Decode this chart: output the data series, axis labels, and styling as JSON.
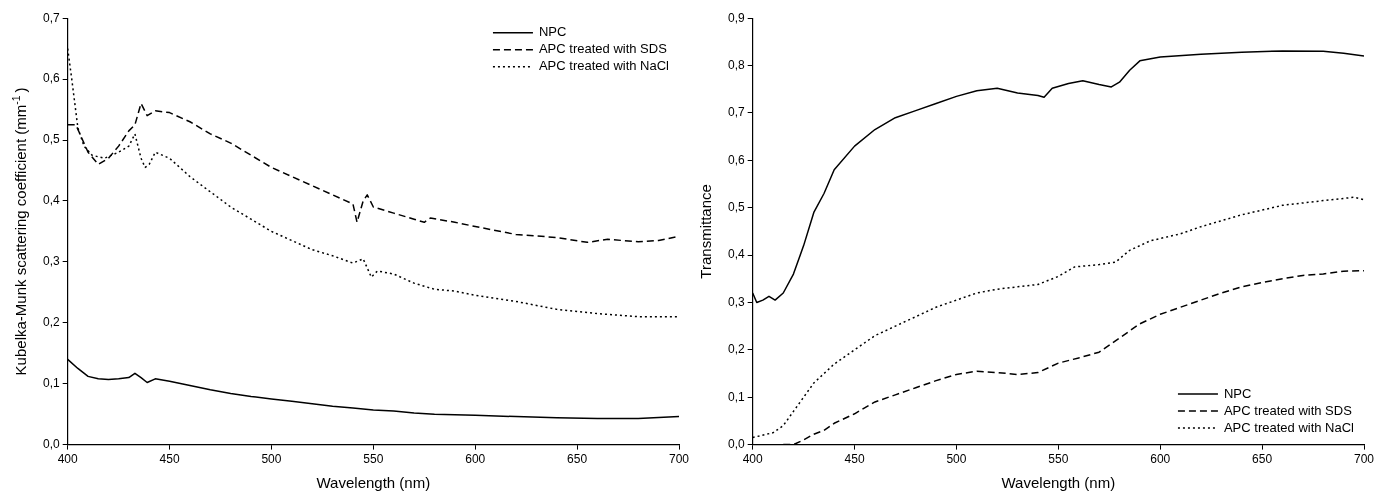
{
  "chart_data": [
    {
      "type": "line",
      "xlabel": "Wavelength (nm)",
      "ylabel": "Kubelka-Munk scattering coefficient (mm$^{-1}$)",
      "xlim": [
        400,
        700
      ],
      "xticks": [
        400,
        450,
        500,
        550,
        600,
        650,
        700
      ],
      "ylim": [
        0,
        0.7
      ],
      "yticks": [
        {
          "value": 0,
          "label": "0,0"
        },
        {
          "value": 0.1,
          "label": "0,1"
        },
        {
          "value": 0.2,
          "label": "0,2"
        },
        {
          "value": 0.3,
          "label": "0,3"
        },
        {
          "value": 0.4,
          "label": "0,4"
        },
        {
          "value": 0.5,
          "label": "0,5"
        },
        {
          "value": 0.6,
          "label": "0,6"
        },
        {
          "value": 0.7,
          "label": "0,7"
        }
      ],
      "grid": false,
      "legend": "top right",
      "marker": "none",
      "series": [
        {
          "name": "NPC",
          "color": "#000000",
          "line_style": "solid",
          "x": [
            400,
            405,
            410,
            415,
            420,
            425,
            430,
            433,
            436,
            439,
            443,
            450,
            460,
            470,
            480,
            490,
            500,
            510,
            520,
            530,
            540,
            550,
            560,
            570,
            580,
            600,
            620,
            640,
            660,
            680,
            700
          ],
          "values": [
            0.14,
            0.125,
            0.112,
            0.108,
            0.107,
            0.108,
            0.11,
            0.117,
            0.11,
            0.102,
            0.108,
            0.104,
            0.097,
            0.09,
            0.084,
            0.079,
            0.075,
            0.071,
            0.067,
            0.063,
            0.06,
            0.057,
            0.055,
            0.052,
            0.05,
            0.048,
            0.046,
            0.044,
            0.043,
            0.043,
            0.046
          ]
        },
        {
          "name": "APC treated with SDS",
          "color": "#000000",
          "line_style": "dashed",
          "x": [
            400,
            404,
            406,
            410,
            415,
            420,
            425,
            430,
            433,
            436,
            439,
            443,
            450,
            460,
            470,
            480,
            490,
            500,
            510,
            520,
            530,
            540,
            542,
            545,
            547,
            550,
            560,
            570,
            575,
            578,
            590,
            600,
            620,
            640,
            655,
            665,
            680,
            690,
            700
          ],
          "values": [
            0.525,
            0.525,
            0.51,
            0.48,
            0.46,
            0.47,
            0.49,
            0.515,
            0.525,
            0.56,
            0.54,
            0.548,
            0.545,
            0.53,
            0.51,
            0.495,
            0.475,
            0.455,
            0.44,
            0.425,
            0.41,
            0.395,
            0.365,
            0.4,
            0.41,
            0.39,
            0.38,
            0.37,
            0.365,
            0.372,
            0.365,
            0.358,
            0.345,
            0.34,
            0.332,
            0.337,
            0.333,
            0.335,
            0.342
          ]
        },
        {
          "name": "APC treated with NaCl",
          "color": "#000000",
          "line_style": "dotted",
          "x": [
            400,
            402,
            405,
            408,
            412,
            418,
            425,
            430,
            433,
            436,
            438,
            440,
            443,
            450,
            460,
            470,
            480,
            490,
            500,
            510,
            520,
            530,
            540,
            545,
            549,
            552,
            560,
            570,
            580,
            590,
            600,
            620,
            640,
            660,
            680,
            700
          ],
          "values": [
            0.65,
            0.6,
            0.52,
            0.49,
            0.475,
            0.47,
            0.48,
            0.49,
            0.51,
            0.47,
            0.455,
            0.46,
            0.48,
            0.47,
            0.44,
            0.415,
            0.39,
            0.37,
            0.35,
            0.335,
            0.32,
            0.31,
            0.298,
            0.305,
            0.275,
            0.285,
            0.28,
            0.265,
            0.255,
            0.252,
            0.245,
            0.235,
            0.222,
            0.215,
            0.21,
            0.21
          ]
        }
      ]
    },
    {
      "type": "line",
      "xlabel": "Wavelength (nm)",
      "ylabel": "Transmittance",
      "xlim": [
        400,
        700
      ],
      "xticks": [
        400,
        450,
        500,
        550,
        600,
        650,
        700
      ],
      "ylim": [
        0,
        0.9
      ],
      "yticks": [
        {
          "value": 0,
          "label": "0,0"
        },
        {
          "value": 0.1,
          "label": "0,1"
        },
        {
          "value": 0.2,
          "label": "0,2"
        },
        {
          "value": 0.3,
          "label": "0,3"
        },
        {
          "value": 0.4,
          "label": "0,4"
        },
        {
          "value": 0.5,
          "label": "0,5"
        },
        {
          "value": 0.6,
          "label": "0,6"
        },
        {
          "value": 0.7,
          "label": "0,7"
        },
        {
          "value": 0.8,
          "label": "0,8"
        },
        {
          "value": 0.9,
          "label": "0,9"
        }
      ],
      "grid": false,
      "legend": "bottom right",
      "marker": "none",
      "series": [
        {
          "name": "NPC",
          "color": "#000000",
          "line_style": "solid",
          "x": [
            400,
            402,
            405,
            408,
            411,
            415,
            420,
            425,
            430,
            435,
            440,
            450,
            460,
            470,
            480,
            490,
            500,
            510,
            520,
            530,
            540,
            543,
            547,
            555,
            562,
            570,
            576,
            580,
            585,
            590,
            600,
            620,
            640,
            660,
            680,
            690,
            700
          ],
          "values": [
            0.32,
            0.3,
            0.305,
            0.313,
            0.305,
            0.32,
            0.36,
            0.42,
            0.49,
            0.53,
            0.58,
            0.63,
            0.665,
            0.69,
            0.705,
            0.72,
            0.735,
            0.747,
            0.752,
            0.742,
            0.737,
            0.733,
            0.752,
            0.762,
            0.768,
            0.76,
            0.755,
            0.765,
            0.79,
            0.81,
            0.818,
            0.824,
            0.828,
            0.831,
            0.83,
            0.826,
            0.82
          ]
        },
        {
          "name": "APC treated with SDS",
          "color": "#000000",
          "line_style": "dashed",
          "x": [
            415,
            420,
            425,
            430,
            435,
            440,
            450,
            460,
            470,
            480,
            490,
            500,
            510,
            520,
            530,
            540,
            550,
            560,
            570,
            580,
            590,
            600,
            610,
            620,
            630,
            640,
            650,
            660,
            670,
            680,
            690,
            700
          ],
          "values": [
            0,
            0,
            0.01,
            0.022,
            0.03,
            0.045,
            0.065,
            0.09,
            0.105,
            0.12,
            0.135,
            0.148,
            0.155,
            0.152,
            0.148,
            0.152,
            0.172,
            0.183,
            0.195,
            0.225,
            0.255,
            0.275,
            0.29,
            0.305,
            0.32,
            0.333,
            0.342,
            0.35,
            0.357,
            0.36,
            0.366,
            0.367
          ]
        },
        {
          "name": "APC treated with NaCl",
          "color": "#000000",
          "line_style": "dotted",
          "x": [
            400,
            410,
            415,
            420,
            425,
            430,
            440,
            450,
            460,
            470,
            480,
            490,
            500,
            510,
            520,
            530,
            540,
            550,
            558,
            570,
            578,
            585,
            595,
            610,
            620,
            640,
            660,
            680,
            695,
            700
          ],
          "values": [
            0.015,
            0.025,
            0.04,
            0.07,
            0.1,
            0.13,
            0.17,
            0.2,
            0.23,
            0.25,
            0.27,
            0.29,
            0.305,
            0.32,
            0.328,
            0.333,
            0.338,
            0.355,
            0.375,
            0.38,
            0.385,
            0.41,
            0.43,
            0.445,
            0.46,
            0.485,
            0.505,
            0.515,
            0.522,
            0.517
          ]
        }
      ]
    }
  ]
}
